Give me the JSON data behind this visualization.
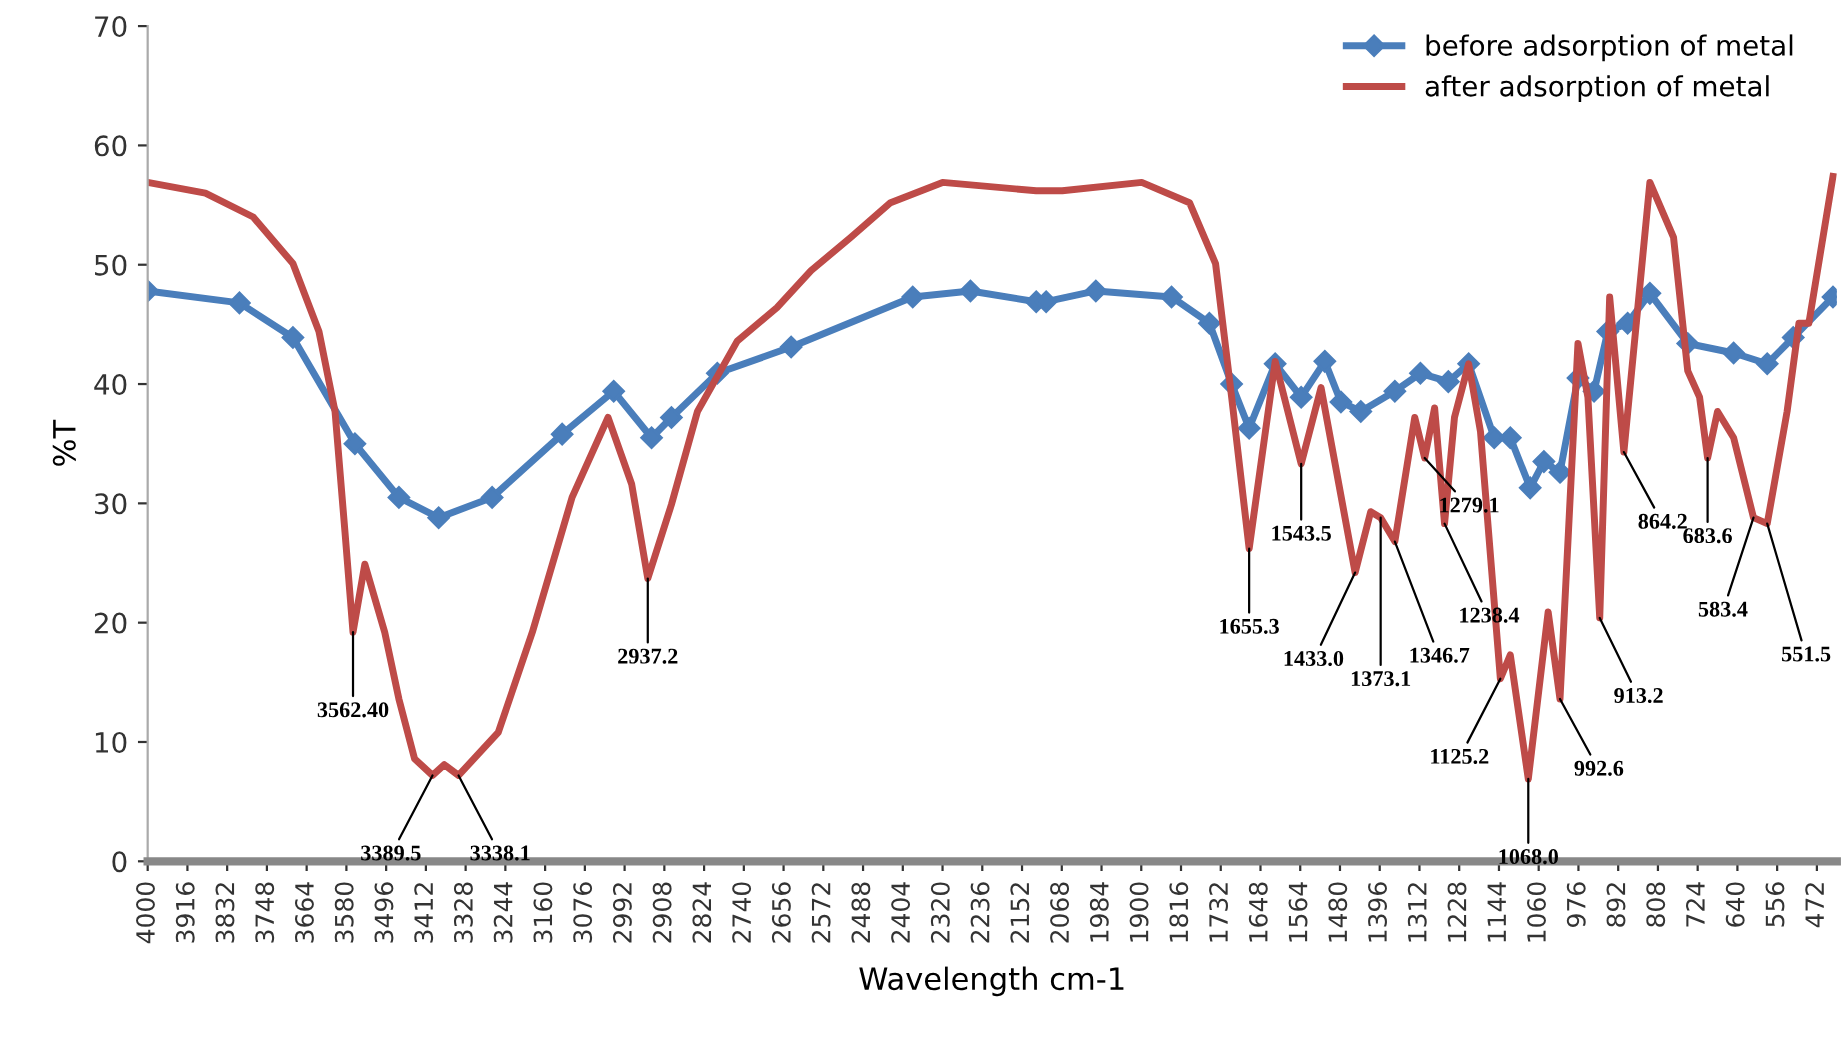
{
  "chart_data": {
    "type": "line",
    "xlabel": "Wavelength cm-1",
    "ylabel": "%T",
    "xlim": [
      4000,
      430
    ],
    "ylim": [
      0,
      70
    ],
    "yticks": [
      0,
      10,
      20,
      30,
      40,
      50,
      60,
      70
    ],
    "xticks": [
      4000,
      3916,
      3832,
      3748,
      3664,
      3580,
      3496,
      3412,
      3328,
      3244,
      3160,
      3076,
      2992,
      2908,
      2824,
      2740,
      2656,
      2572,
      2488,
      2404,
      2320,
      2236,
      2152,
      2068,
      1984,
      1900,
      1816,
      1732,
      1648,
      1564,
      1480,
      1396,
      1312,
      1228,
      1144,
      1060,
      976,
      892,
      808,
      724,
      640,
      556,
      472
    ],
    "grid": false,
    "legend": "top right",
    "series": [
      {
        "name": "before adsorption of metal",
        "color": "#4a7ebb",
        "marker": "diamond",
        "x": [
          4000,
          3806,
          3693,
          3562,
          3469,
          3385,
          3272,
          3124,
          3015,
          2935,
          2893,
          2796,
          2640,
          2383,
          2261,
          2122,
          2101,
          1996,
          1836,
          1756,
          1709,
          1672,
          1617,
          1562,
          1512,
          1478,
          1436,
          1364,
          1310,
          1251,
          1208,
          1154,
          1120,
          1078,
          1049,
          1015,
          977,
          943,
          914,
          872,
          825,
          745,
          648,
          577,
          522,
          438
        ],
        "values": [
          47.8,
          46.8,
          43.9,
          35.0,
          30.5,
          28.8,
          30.5,
          35.8,
          39.4,
          35.5,
          37.2,
          40.9,
          43.1,
          47.3,
          47.8,
          46.9,
          46.9,
          47.8,
          47.3,
          45.1,
          40.0,
          36.3,
          41.7,
          38.9,
          41.9,
          38.5,
          37.7,
          39.4,
          40.9,
          40.2,
          41.7,
          35.5,
          35.5,
          31.3,
          33.5,
          32.6,
          40.5,
          39.4,
          44.4,
          45.1,
          47.6,
          43.4,
          42.6,
          41.7,
          43.9,
          47.3
        ]
      },
      {
        "name": "after adsorption of metal",
        "color": "#be4b48",
        "marker": "none",
        "x": [
          4000,
          3878,
          3777,
          3693,
          3638,
          3604,
          3583,
          3566,
          3541,
          3499,
          3469,
          3436,
          3398,
          3373,
          3343,
          3259,
          3187,
          3103,
          3027,
          2977,
          2943,
          2893,
          2838,
          2754,
          2670,
          2598,
          2514,
          2430,
          2320,
          2122,
          2067,
          1899,
          1798,
          1743,
          1709,
          1672,
          1617,
          1562,
          1520,
          1448,
          1415,
          1394,
          1364,
          1322,
          1301,
          1280,
          1259,
          1238,
          1208,
          1183,
          1141,
          1120,
          1082,
          1040,
          1015,
          977,
          956,
          931,
          910,
          880,
          825,
          775,
          745,
          720,
          703,
          682,
          648,
          606,
          577,
          535,
          510,
          489,
          438
        ],
        "values": [
          56.9,
          56.0,
          54.0,
          50.1,
          44.4,
          37.7,
          27.6,
          19.2,
          24.9,
          19.2,
          13.6,
          8.6,
          7.2,
          8.1,
          7.2,
          10.8,
          19.2,
          30.5,
          37.2,
          31.6,
          23.7,
          29.9,
          37.7,
          43.6,
          46.4,
          49.5,
          52.3,
          55.2,
          56.9,
          56.2,
          56.2,
          56.9,
          55.2,
          50.1,
          38.9,
          26.2,
          41.9,
          33.3,
          39.7,
          24.2,
          29.3,
          28.8,
          26.8,
          37.2,
          33.8,
          38.0,
          28.3,
          37.2,
          41.7,
          36.0,
          15.3,
          17.3,
          6.9,
          20.9,
          13.6,
          43.4,
          38.9,
          20.4,
          47.3,
          34.3,
          56.9,
          52.3,
          41.1,
          38.9,
          33.8,
          37.7,
          35.5,
          28.8,
          28.3,
          37.7,
          45.1,
          45.1,
          57.4
        ]
      }
    ],
    "annotations": [
      {
        "text": "3562.40",
        "x": 3566,
        "y": 19.2
      },
      {
        "text": "3389.5",
        "x": 3398,
        "y": 7.2
      },
      {
        "text": "3338.1",
        "x": 3343,
        "y": 7.2
      },
      {
        "text": "2937.2",
        "x": 2943,
        "y": 23.7
      },
      {
        "text": "1655.3",
        "x": 1672,
        "y": 26.2
      },
      {
        "text": "1543.5",
        "x": 1562,
        "y": 33.3
      },
      {
        "text": "1433.0",
        "x": 1448,
        "y": 24.2
      },
      {
        "text": "1373.1",
        "x": 1394,
        "y": 28.8
      },
      {
        "text": "1346.7",
        "x": 1364,
        "y": 26.8
      },
      {
        "text": "1279.1",
        "x": 1301,
        "y": 33.8
      },
      {
        "text": "1238.4",
        "x": 1259,
        "y": 28.3
      },
      {
        "text": "1125.2",
        "x": 1141,
        "y": 15.3
      },
      {
        "text": "1068.0",
        "x": 1082,
        "y": 6.9
      },
      {
        "text": "992.6",
        "x": 1015,
        "y": 13.6
      },
      {
        "text": "913.2",
        "x": 931,
        "y": 20.4
      },
      {
        "text": "864.2",
        "x": 880,
        "y": 34.3
      },
      {
        "text": "683.6",
        "x": 703,
        "y": 33.8
      },
      {
        "text": "583.4",
        "x": 606,
        "y": 28.8
      },
      {
        "text": "551.5",
        "x": 577,
        "y": 28.3
      }
    ]
  }
}
